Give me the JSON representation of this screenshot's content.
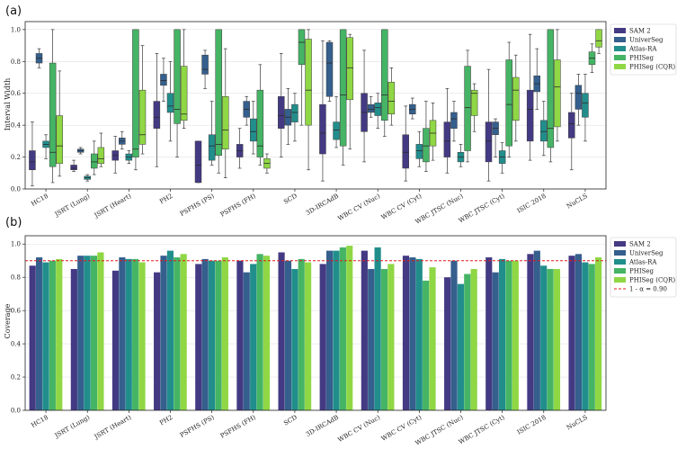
{
  "figure": {
    "background": "#ffffff"
  },
  "chart_data": [
    {
      "type": "box",
      "panel_label": "(a)",
      "title": "",
      "xlabel": "",
      "ylabel": "Interval Width",
      "ylim": [
        0,
        1.05
      ],
      "yticks": [
        "0.0",
        "0.2",
        "0.4",
        "0.6",
        "0.8",
        "1.0"
      ],
      "categories": [
        "HC18",
        "JSRT (Lung)",
        "JSRT (Heart)",
        "PH2",
        "PSFHS (PS)",
        "PSFHS (FH)",
        "SCD",
        "3D-IRCAdB",
        "WBC CV (Nuc)",
        "WBC CV (Cyt)",
        "WBC JTSC (Nuc)",
        "WBC JTSC (Cyt)",
        "ISIC 2018",
        "NuCLS"
      ],
      "legend": {
        "placement": "outside-right",
        "entries": [
          "SAM 2",
          "UniverSeg",
          "Atlas-RA",
          "PHISeg",
          "PHISeg (CQR)"
        ]
      },
      "series": [
        {
          "name": "SAM 2",
          "color": "#433a83",
          "boxes": [
            {
              "wl": 0.02,
              "q1": 0.12,
              "med": 0.17,
              "q3": 0.24,
              "wh": 0.42
            },
            {
              "wl": 0.11,
              "q1": 0.12,
              "med": 0.13,
              "q3": 0.15,
              "wh": 0.18
            },
            {
              "wl": 0.1,
              "q1": 0.18,
              "med": 0.21,
              "q3": 0.24,
              "wh": 0.33
            },
            {
              "wl": 0.14,
              "q1": 0.38,
              "med": 0.45,
              "q3": 0.55,
              "wh": 0.85
            },
            {
              "wl": 0.04,
              "q1": 0.04,
              "med": 0.15,
              "q3": 0.3,
              "wh": 0.3
            },
            {
              "wl": 0.13,
              "q1": 0.2,
              "med": 0.24,
              "q3": 0.28,
              "wh": 0.38
            },
            {
              "wl": 0.2,
              "q1": 0.38,
              "med": 0.46,
              "q3": 0.58,
              "wh": 0.85
            },
            {
              "wl": 0.05,
              "q1": 0.22,
              "med": 0.35,
              "q3": 0.53,
              "wh": 0.93
            },
            {
              "wl": 0.17,
              "q1": 0.36,
              "med": 0.48,
              "q3": 0.6,
              "wh": 0.87
            },
            {
              "wl": 0.05,
              "q1": 0.13,
              "med": 0.23,
              "q3": 0.34,
              "wh": 0.52
            },
            {
              "wl": 0.1,
              "q1": 0.2,
              "med": 0.3,
              "q3": 0.42,
              "wh": 0.63
            },
            {
              "wl": 0.05,
              "q1": 0.17,
              "med": 0.3,
              "q3": 0.42,
              "wh": 0.75
            },
            {
              "wl": 0.18,
              "q1": 0.3,
              "med": 0.5,
              "q3": 0.62,
              "wh": 0.97
            },
            {
              "wl": 0.12,
              "q1": 0.32,
              "med": 0.41,
              "q3": 0.48,
              "wh": 0.6
            }
          ]
        },
        {
          "name": "UniverSeg",
          "color": "#355f8d",
          "boxes": [
            {
              "wl": 0.76,
              "q1": 0.79,
              "med": 0.82,
              "q3": 0.85,
              "wh": 0.88
            },
            {
              "wl": 0.22,
              "q1": 0.23,
              "med": 0.24,
              "q3": 0.25,
              "wh": 0.26
            },
            {
              "wl": 0.25,
              "q1": 0.28,
              "med": 0.3,
              "q3": 0.32,
              "wh": 0.36
            },
            {
              "wl": 0.55,
              "q1": 0.65,
              "med": 0.68,
              "q3": 0.72,
              "wh": 0.82
            },
            {
              "wl": 0.63,
              "q1": 0.72,
              "med": 0.75,
              "q3": 0.84,
              "wh": 0.87
            },
            {
              "wl": 0.4,
              "q1": 0.45,
              "med": 0.5,
              "q3": 0.55,
              "wh": 0.58
            },
            {
              "wl": 0.28,
              "q1": 0.4,
              "med": 0.45,
              "q3": 0.5,
              "wh": 0.63
            },
            {
              "wl": 0.55,
              "q1": 0.58,
              "med": 0.79,
              "q3": 0.92,
              "wh": 0.93
            },
            {
              "wl": 0.45,
              "q1": 0.48,
              "med": 0.5,
              "q3": 0.53,
              "wh": 0.58
            },
            {
              "wl": 0.44,
              "q1": 0.47,
              "med": 0.5,
              "q3": 0.53,
              "wh": 0.57
            },
            {
              "wl": 0.3,
              "q1": 0.38,
              "med": 0.44,
              "q3": 0.48,
              "wh": 0.55
            },
            {
              "wl": 0.2,
              "q1": 0.34,
              "med": 0.38,
              "q3": 0.42,
              "wh": 0.44
            },
            {
              "wl": 0.5,
              "q1": 0.61,
              "med": 0.66,
              "q3": 0.71,
              "wh": 0.88
            },
            {
              "wl": 0.4,
              "q1": 0.5,
              "med": 0.6,
              "q3": 0.65,
              "wh": 0.72
            }
          ]
        },
        {
          "name": "Atlas-RA",
          "color": "#218e8c",
          "boxes": [
            {
              "wl": 0.19,
              "q1": 0.26,
              "med": 0.28,
              "q3": 0.3,
              "wh": 0.34
            },
            {
              "wl": 0.05,
              "q1": 0.06,
              "med": 0.07,
              "q3": 0.08,
              "wh": 0.09
            },
            {
              "wl": 0.16,
              "q1": 0.18,
              "med": 0.2,
              "q3": 0.22,
              "wh": 0.24
            },
            {
              "wl": 0.3,
              "q1": 0.48,
              "med": 0.52,
              "q3": 0.6,
              "wh": 0.8
            },
            {
              "wl": 0.15,
              "q1": 0.18,
              "med": 0.27,
              "q3": 0.34,
              "wh": 0.55
            },
            {
              "wl": 0.22,
              "q1": 0.3,
              "med": 0.36,
              "q3": 0.44,
              "wh": 0.55
            },
            {
              "wl": 0.3,
              "q1": 0.42,
              "med": 0.48,
              "q3": 0.53,
              "wh": 0.6
            },
            {
              "wl": 0.26,
              "q1": 0.31,
              "med": 0.37,
              "q3": 0.42,
              "wh": 0.58
            },
            {
              "wl": 0.38,
              "q1": 0.46,
              "med": 0.51,
              "q3": 0.54,
              "wh": 0.6
            },
            {
              "wl": 0.14,
              "q1": 0.19,
              "med": 0.24,
              "q3": 0.28,
              "wh": 0.36
            },
            {
              "wl": 0.14,
              "q1": 0.17,
              "med": 0.2,
              "q3": 0.23,
              "wh": 0.28
            },
            {
              "wl": 0.1,
              "q1": 0.16,
              "med": 0.2,
              "q3": 0.24,
              "wh": 0.29
            },
            {
              "wl": 0.21,
              "q1": 0.3,
              "med": 0.36,
              "q3": 0.43,
              "wh": 0.55
            },
            {
              "wl": 0.3,
              "q1": 0.45,
              "med": 0.54,
              "q3": 0.6,
              "wh": 0.72
            }
          ]
        },
        {
          "name": "PHISeg",
          "color": "#45b465",
          "boxes": [
            {
              "wl": 0.04,
              "q1": 0.14,
              "med": 0.23,
              "q3": 0.79,
              "wh": 1.0
            },
            {
              "wl": 0.09,
              "q1": 0.13,
              "med": 0.17,
              "q3": 0.22,
              "wh": 0.3
            },
            {
              "wl": 0.12,
              "q1": 0.2,
              "med": 0.25,
              "q3": 1.0,
              "wh": 1.0
            },
            {
              "wl": 0.2,
              "q1": 0.41,
              "med": 0.5,
              "q3": 1.0,
              "wh": 1.0
            },
            {
              "wl": 0.1,
              "q1": 0.21,
              "med": 0.28,
              "q3": 1.0,
              "wh": 1.0
            },
            {
              "wl": 0.15,
              "q1": 0.2,
              "med": 0.27,
              "q3": 0.62,
              "wh": 0.78
            },
            {
              "wl": 0.4,
              "q1": 0.78,
              "med": 0.92,
              "q3": 1.0,
              "wh": 1.0
            },
            {
              "wl": 0.15,
              "q1": 0.27,
              "med": 0.59,
              "q3": 1.0,
              "wh": 1.0
            },
            {
              "wl": 0.33,
              "q1": 0.43,
              "med": 0.59,
              "q3": 1.0,
              "wh": 1.0
            },
            {
              "wl": 0.11,
              "q1": 0.17,
              "med": 0.27,
              "q3": 0.38,
              "wh": 0.55
            },
            {
              "wl": 0.17,
              "q1": 0.24,
              "med": 0.51,
              "q3": 0.77,
              "wh": 0.87
            },
            {
              "wl": 0.2,
              "q1": 0.27,
              "med": 0.53,
              "q3": 0.81,
              "wh": 0.92
            },
            {
              "wl": 0.17,
              "q1": 0.26,
              "med": 0.38,
              "q3": 1.0,
              "wh": 1.0
            },
            {
              "wl": 0.73,
              "q1": 0.78,
              "med": 0.82,
              "q3": 0.86,
              "wh": 0.91
            }
          ]
        },
        {
          "name": "PHISeg (CQR)",
          "color": "#8fd744",
          "boxes": [
            {
              "wl": 0.08,
              "q1": 0.16,
              "med": 0.27,
              "q3": 0.46,
              "wh": 0.74
            },
            {
              "wl": 0.14,
              "q1": 0.16,
              "med": 0.19,
              "q3": 0.26,
              "wh": 0.35
            },
            {
              "wl": 0.22,
              "q1": 0.28,
              "med": 0.34,
              "q3": 0.62,
              "wh": 0.9
            },
            {
              "wl": 0.38,
              "q1": 0.43,
              "med": 0.47,
              "q3": 0.77,
              "wh": 1.0
            },
            {
              "wl": 0.07,
              "q1": 0.25,
              "med": 0.37,
              "q3": 0.58,
              "wh": 0.88
            },
            {
              "wl": 0.1,
              "q1": 0.13,
              "med": 0.16,
              "q3": 0.19,
              "wh": 0.22
            },
            {
              "wl": 0.12,
              "q1": 0.4,
              "med": 0.62,
              "q3": 0.94,
              "wh": 1.0
            },
            {
              "wl": 0.25,
              "q1": 0.56,
              "med": 0.76,
              "q3": 0.95,
              "wh": 0.97
            },
            {
              "wl": 0.4,
              "q1": 0.47,
              "med": 0.55,
              "q3": 0.67,
              "wh": 0.76
            },
            {
              "wl": 0.18,
              "q1": 0.27,
              "med": 0.35,
              "q3": 0.43,
              "wh": 0.54
            },
            {
              "wl": 0.36,
              "q1": 0.46,
              "med": 0.6,
              "q3": 0.62,
              "wh": 0.66
            },
            {
              "wl": 0.3,
              "q1": 0.43,
              "med": 0.62,
              "q3": 0.7,
              "wh": 0.84
            },
            {
              "wl": 0.3,
              "q1": 0.39,
              "med": 0.64,
              "q3": 0.81,
              "wh": 1.0
            },
            {
              "wl": 0.85,
              "q1": 0.89,
              "med": 0.93,
              "q3": 1.0,
              "wh": 1.0
            }
          ]
        }
      ]
    },
    {
      "type": "bar",
      "panel_label": "(b)",
      "title": "",
      "xlabel": "",
      "ylabel": "Coverage",
      "ylim": [
        0,
        1.05
      ],
      "yticks": [
        "0.0",
        "0.2",
        "0.4",
        "0.6",
        "0.8",
        "1.0"
      ],
      "reference_line": {
        "value": 0.9,
        "label": "1 - α = 0.90",
        "color": "#e31a1c"
      },
      "categories": [
        "HC18",
        "JSRT (Lung)",
        "JSRT (Heart)",
        "PH2",
        "PSFHS (PS)",
        "PSFHS (FH)",
        "SCD",
        "3D-IRCAdB",
        "WBC CV (Nuc)",
        "WBC CV (Cyt)",
        "WBC JTSC (Nuc)",
        "WBC JTSC (Cyt)",
        "ISIC 2018",
        "NuCLS"
      ],
      "legend": {
        "placement": "outside-right",
        "entries": [
          "SAM 2",
          "UniverSeg",
          "Atlas-RA",
          "PHISeg",
          "PHISeg (CQR)",
          "1 - α = 0.90"
        ]
      },
      "series": [
        {
          "name": "SAM 2",
          "color": "#433a83",
          "values": [
            0.87,
            0.85,
            0.84,
            0.83,
            0.88,
            0.9,
            0.95,
            0.88,
            0.96,
            0.93,
            0.8,
            0.92,
            0.94,
            0.93
          ]
        },
        {
          "name": "UniverSeg",
          "color": "#355f8d",
          "values": [
            0.92,
            0.93,
            0.92,
            0.93,
            0.91,
            0.83,
            0.9,
            0.96,
            0.85,
            0.92,
            0.9,
            0.83,
            0.96,
            0.94
          ]
        },
        {
          "name": "Atlas-RA",
          "color": "#218e8c",
          "values": [
            0.89,
            0.93,
            0.91,
            0.96,
            0.9,
            0.88,
            0.85,
            0.96,
            0.98,
            0.91,
            0.76,
            0.91,
            0.87,
            0.89
          ]
        },
        {
          "name": "PHISeg",
          "color": "#45b465",
          "values": [
            0.9,
            0.93,
            0.91,
            0.92,
            0.9,
            0.94,
            0.91,
            0.98,
            0.85,
            0.78,
            0.82,
            0.9,
            0.85,
            0.88
          ]
        },
        {
          "name": "PHISeg (CQR)",
          "color": "#8fd744",
          "values": [
            0.91,
            0.95,
            0.89,
            0.94,
            0.92,
            0.93,
            0.89,
            0.99,
            0.88,
            0.86,
            0.85,
            0.9,
            0.85,
            0.92
          ]
        }
      ]
    }
  ]
}
